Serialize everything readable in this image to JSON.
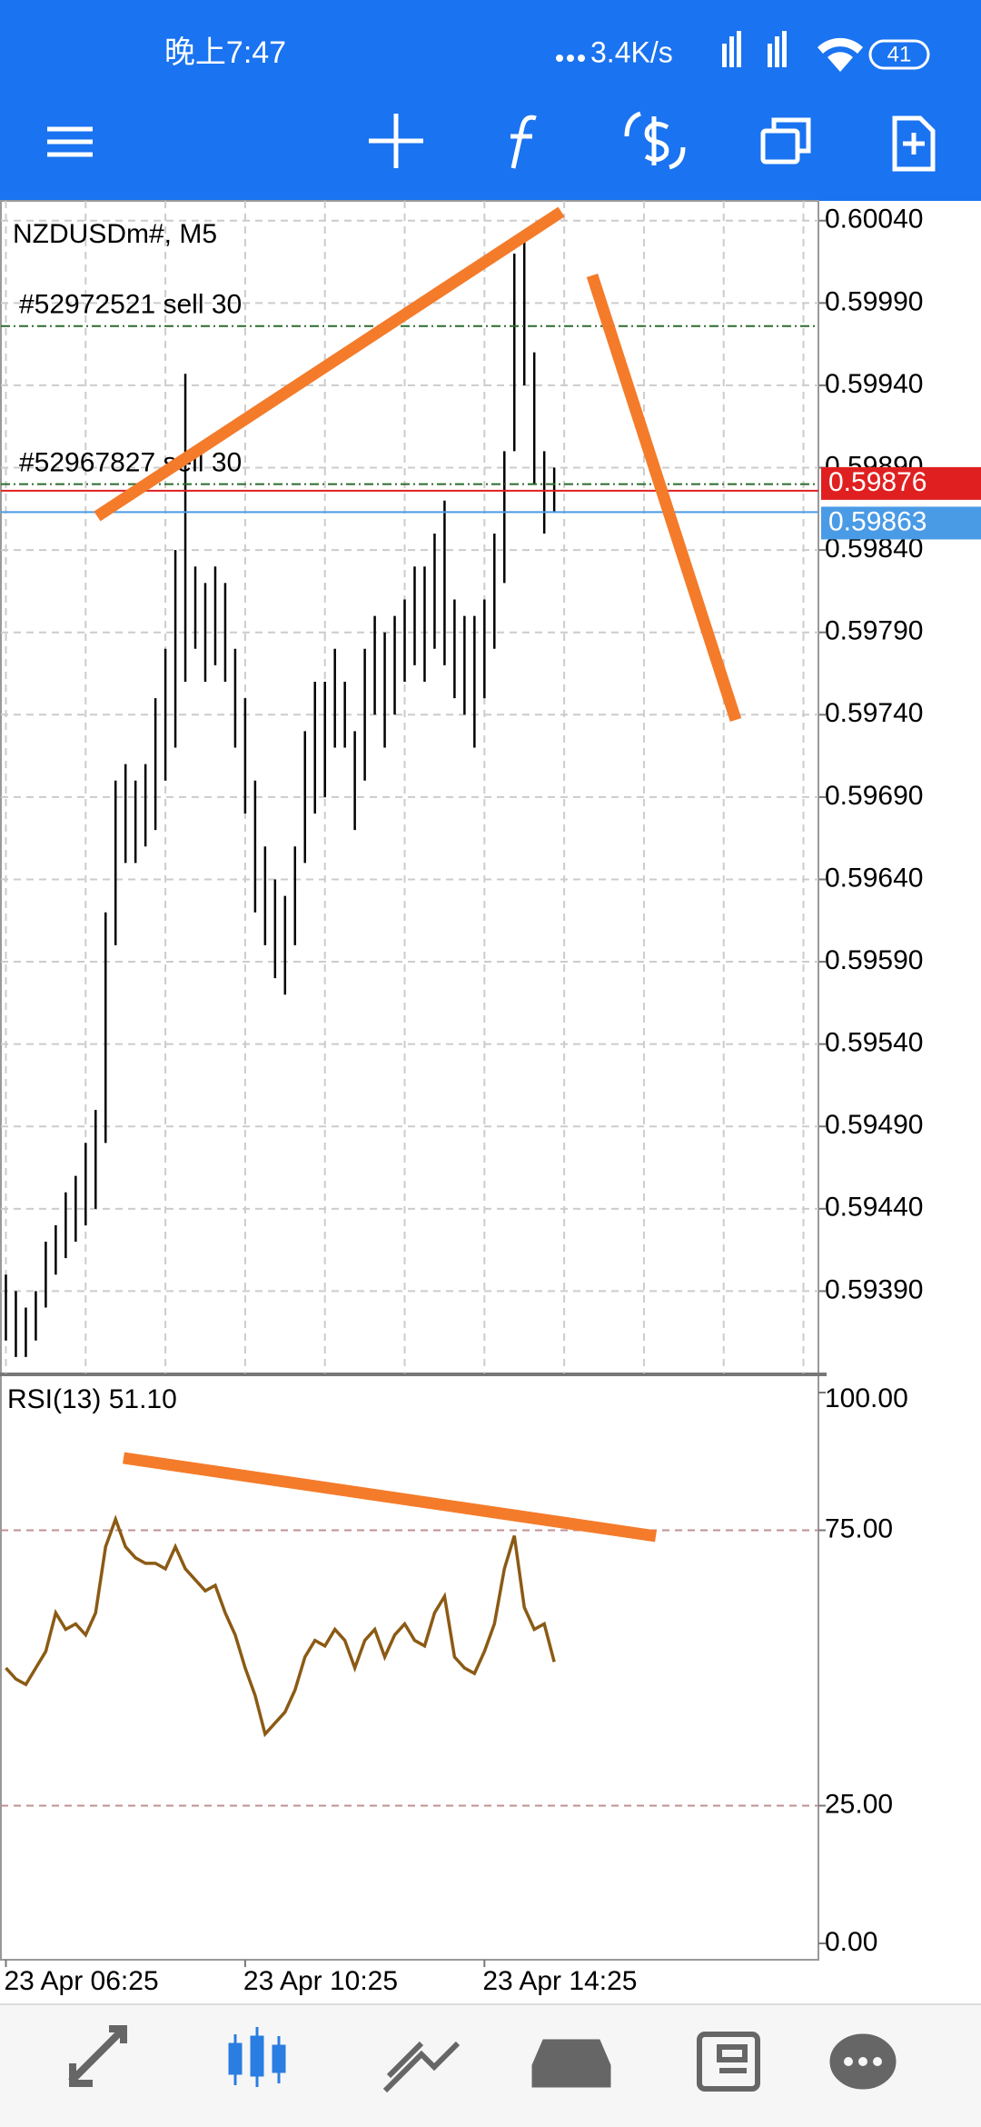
{
  "status_bar": {
    "time": "晚上7:47",
    "net_speed": "3.4K/s",
    "battery": "41"
  },
  "chart_data": [
    {
      "type": "candlestick",
      "title": "NZDUSDm#, M5",
      "color": "#000000",
      "high": [
        0.594,
        0.5939,
        0.5938,
        0.5939,
        0.5942,
        0.5943,
        0.5945,
        0.5946,
        0.5948,
        0.595,
        0.5962,
        0.597,
        0.5971,
        0.597,
        0.5971,
        0.5975,
        0.5978,
        0.5984,
        0.59947,
        0.5983,
        0.5982,
        0.5983,
        0.5982,
        0.5978,
        0.5975,
        0.597,
        0.5966,
        0.5964,
        0.5963,
        0.5966,
        0.5973,
        0.5976,
        0.5976,
        0.5978,
        0.5976,
        0.5973,
        0.5978,
        0.598,
        0.5979,
        0.598,
        0.5981,
        0.5983,
        0.5983,
        0.5985,
        0.5987,
        0.5981,
        0.598,
        0.598,
        0.5981,
        0.5985,
        0.599,
        0.6002,
        0.6003,
        0.5996,
        0.599,
        0.5989
      ],
      "low": [
        0.5936,
        0.5935,
        0.5935,
        0.5936,
        0.5938,
        0.594,
        0.5941,
        0.5942,
        0.5943,
        0.5944,
        0.5948,
        0.596,
        0.5965,
        0.5965,
        0.5966,
        0.5967,
        0.597,
        0.5972,
        0.5976,
        0.5978,
        0.5976,
        0.5977,
        0.5976,
        0.5972,
        0.5968,
        0.5962,
        0.596,
        0.5958,
        0.5957,
        0.596,
        0.5965,
        0.5968,
        0.5969,
        0.5972,
        0.5972,
        0.5967,
        0.597,
        0.5974,
        0.5972,
        0.5974,
        0.5976,
        0.5977,
        0.5976,
        0.5978,
        0.5977,
        0.5975,
        0.5974,
        0.5972,
        0.5975,
        0.5978,
        0.5982,
        0.599,
        0.5994,
        0.5988,
        0.5985,
        0.59863
      ],
      "xlim": [
        -0.5,
        81.5
      ],
      "xgrid": [
        0,
        8,
        16,
        24,
        32,
        40,
        48,
        56,
        64,
        72,
        80
      ],
      "xticks": [
        {
          "value": 0,
          "label": "23 Apr 06:25"
        },
        {
          "value": 24,
          "label": "23 Apr 10:25"
        },
        {
          "value": 48,
          "label": "23 Apr 14:25"
        }
      ],
      "ylim": [
        0.5934,
        0.60052
      ],
      "yticks": [
        {
          "value": 0.6004,
          "label": "0.60040"
        },
        {
          "value": 0.5999,
          "label": "0.59990"
        },
        {
          "value": 0.5994,
          "label": "0.59940"
        },
        {
          "value": 0.5989,
          "label": "0.59890"
        },
        {
          "value": 0.5984,
          "label": "0.59840"
        },
        {
          "value": 0.5979,
          "label": "0.59790"
        },
        {
          "value": 0.5974,
          "label": "0.59740"
        },
        {
          "value": 0.5969,
          "label": "0.59690"
        },
        {
          "value": 0.5964,
          "label": "0.59640"
        },
        {
          "value": 0.5959,
          "label": "0.59590"
        },
        {
          "value": 0.5954,
          "label": "0.59540"
        },
        {
          "value": 0.5949,
          "label": "0.59490"
        },
        {
          "value": 0.5944,
          "label": "0.59440"
        },
        {
          "value": 0.5939,
          "label": "0.59390"
        }
      ],
      "grid": true,
      "orders": [
        {
          "label": "#52972521 sell 30",
          "price": 0.59976
        },
        {
          "label": "#52967827 sell 30",
          "price": 0.5988
        }
      ],
      "bid": 0.59876,
      "ask": 0.59863
    },
    {
      "type": "line",
      "title": "RSI(13) 51.10",
      "color": "#8b5a14",
      "values": [
        50,
        48,
        47,
        50,
        53,
        60,
        57,
        58,
        56,
        60,
        72,
        77,
        72,
        70,
        69,
        69,
        68,
        72,
        68,
        66,
        64,
        65,
        60,
        56,
        50,
        45,
        38,
        40,
        42,
        46,
        52,
        55,
        54,
        57,
        55,
        50,
        55,
        57,
        52,
        56,
        58,
        55,
        54,
        60,
        63,
        52,
        50,
        49,
        53,
        58,
        68,
        74,
        61,
        57,
        58,
        51.1
      ],
      "xlim": [
        -0.5,
        81.5
      ],
      "ylim": [
        0,
        100
      ],
      "yticks": [
        {
          "value": 100,
          "label": "100.00"
        },
        {
          "value": 75,
          "label": "75.00"
        },
        {
          "value": 25,
          "label": "25.00"
        },
        {
          "value": 0,
          "label": "0.00"
        }
      ]
    }
  ]
}
